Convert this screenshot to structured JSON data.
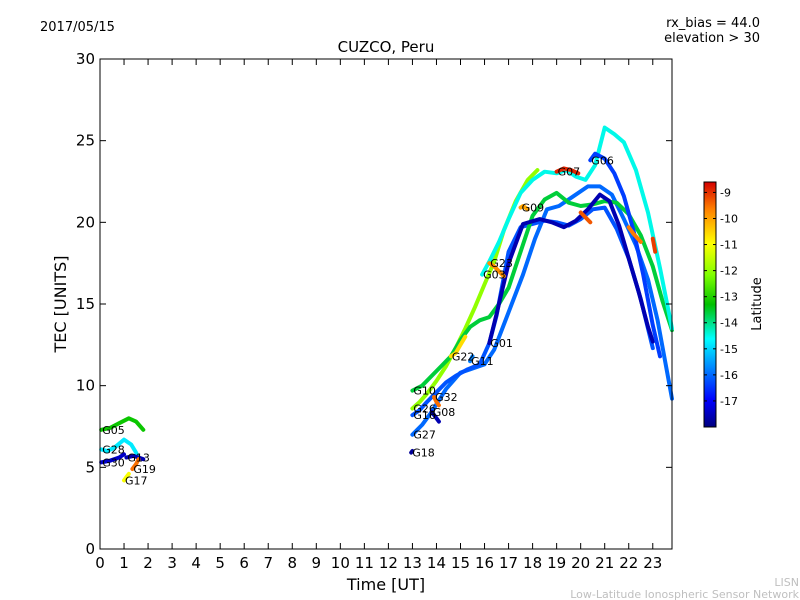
{
  "header": {
    "date": "2017/05/15",
    "title": "CUZCO, Peru",
    "rx_bias": "rx_bias = 44.0",
    "elevation": "elevation > 30"
  },
  "colorbar": {
    "label": "Latitude",
    "ticks": [
      "-9",
      "-10",
      "-11",
      "-12",
      "-13",
      "-14",
      "-15",
      "-16",
      "-17"
    ],
    "range": [
      -18,
      -8.6
    ]
  },
  "credits": {
    "line1": "LISN",
    "line2": "Low-Latitude Ionospheric Sensor Network"
  },
  "chart_data": {
    "type": "scatter",
    "title": "CUZCO, Peru",
    "xlabel": "Time [UT]",
    "ylabel": "TEC [UNITS]",
    "xlim": [
      0,
      23.8
    ],
    "ylim": [
      0,
      30
    ],
    "xticks": [
      "0",
      "1",
      "2",
      "3",
      "4",
      "5",
      "6",
      "7",
      "8",
      "9",
      "10",
      "11",
      "12",
      "13",
      "14",
      "15",
      "16",
      "17",
      "18",
      "19",
      "20",
      "21",
      "22",
      "23"
    ],
    "yticks": [
      "0",
      "5",
      "10",
      "15",
      "20",
      "25",
      "30"
    ],
    "grid": false,
    "color_by": "Latitude",
    "series": [
      {
        "name": "G05",
        "lat": -13.2,
        "x": [
          0.05,
          0.4,
          0.8,
          1.2,
          1.5,
          1.8
        ],
        "y": [
          7.3,
          7.4,
          7.7,
          8.0,
          7.8,
          7.3
        ]
      },
      {
        "name": "G28",
        "lat": -14.8,
        "x": [
          0.05,
          0.3,
          0.6,
          1.0,
          1.3,
          1.5,
          1.6
        ],
        "y": [
          6.1,
          6.0,
          6.2,
          6.7,
          6.4,
          5.9,
          5.5
        ]
      },
      {
        "name": "G30",
        "lat": -17.4,
        "x": [
          0.05,
          0.4,
          0.8,
          1.0
        ],
        "y": [
          5.3,
          5.4,
          5.6,
          5.8
        ]
      },
      {
        "name": "G13",
        "lat": -17.6,
        "x": [
          1.1,
          1.4,
          1.8
        ],
        "y": [
          5.6,
          5.7,
          5.5
        ]
      },
      {
        "name": "G19",
        "lat": -9.5,
        "x": [
          1.35,
          1.5,
          1.6
        ],
        "y": [
          4.9,
          5.2,
          5.5
        ]
      },
      {
        "name": "G17",
        "lat": -11.0,
        "x": [
          1.0,
          1.1,
          1.2
        ],
        "y": [
          4.2,
          4.4,
          4.6
        ]
      },
      {
        "name": "G18",
        "lat": -17.8,
        "x": [
          12.95,
          13.0
        ],
        "y": [
          5.9,
          6.0
        ]
      },
      {
        "name": "G27",
        "lat": -16.0,
        "x": [
          13.0,
          13.4,
          13.8,
          14.4,
          15.0,
          15.4,
          16.0,
          16.4,
          17.0,
          17.6,
          18.1,
          18.6,
          19.1,
          19.7,
          20.3,
          20.8,
          21.3,
          21.8,
          22.3,
          22.8,
          23.2,
          23.8
        ],
        "y": [
          7.0,
          7.6,
          8.4,
          9.8,
          10.8,
          11.0,
          11.3,
          12.2,
          14.5,
          16.8,
          19.0,
          20.8,
          21.0,
          21.6,
          22.2,
          22.2,
          21.7,
          20.2,
          18.6,
          16.5,
          14.0,
          9.2
        ]
      },
      {
        "name": "G16",
        "lat": -16.2,
        "x": [
          13.0,
          13.3,
          13.6,
          14.0,
          14.4,
          14.8,
          15.3,
          15.8,
          16.2,
          16.5,
          17.0,
          17.5,
          18.0,
          18.5,
          19.0,
          19.5,
          20.0,
          20.5,
          21.0,
          21.5,
          22.0,
          22.5,
          23.0
        ],
        "y": [
          8.2,
          8.5,
          9.0,
          9.6,
          10.2,
          10.6,
          11.0,
          11.3,
          12.6,
          14.3,
          18.2,
          19.7,
          19.9,
          20.1,
          20.0,
          19.8,
          20.2,
          20.8,
          20.9,
          19.6,
          17.8,
          15.3,
          12.3
        ]
      },
      {
        "name": "G26",
        "lat": -12.0,
        "x": [
          13.0,
          13.3,
          13.6,
          14.0,
          14.4,
          14.8,
          15.2,
          15.6,
          16.0,
          16.4,
          16.8,
          17.3,
          17.8,
          18.2
        ],
        "y": [
          8.6,
          9.0,
          9.5,
          10.3,
          11.2,
          12.3,
          13.5,
          14.8,
          16.2,
          17.6,
          19.5,
          21.3,
          22.6,
          23.2
        ]
      },
      {
        "name": "G10",
        "lat": -13.6,
        "x": [
          13.0,
          13.4,
          13.8,
          14.2,
          14.6,
          15.0,
          15.4,
          15.8,
          16.2,
          16.6,
          17.0,
          17.5,
          18.0,
          18.5,
          19.0,
          19.5,
          20.0,
          20.5,
          21.0,
          21.5,
          22.0,
          22.5,
          23.0,
          23.4,
          23.8
        ],
        "y": [
          9.7,
          10.0,
          10.6,
          11.2,
          11.8,
          12.8,
          13.6,
          14.0,
          14.2,
          15.0,
          16.0,
          18.2,
          20.4,
          21.4,
          21.8,
          21.2,
          21.0,
          21.1,
          21.3,
          21.2,
          20.5,
          19.2,
          17.3,
          15.2,
          13.4
        ]
      },
      {
        "name": "G01",
        "lat": -17.6,
        "x": [
          16.2,
          16.5,
          17.0,
          17.6,
          18.3,
          18.8,
          19.3,
          19.8,
          20.3,
          20.8,
          21.2,
          21.6,
          22.0,
          22.4,
          22.8,
          23.0
        ],
        "y": [
          12.6,
          14.4,
          17.5,
          19.9,
          20.2,
          20.0,
          19.7,
          20.1,
          20.8,
          21.7,
          21.3,
          19.8,
          17.8,
          15.8,
          13.6,
          12.7
        ]
      },
      {
        "name": "G22",
        "lat": -10.6,
        "x": [
          14.6,
          14.8,
          15.0,
          15.2
        ],
        "y": [
          11.8,
          12.0,
          12.5,
          13.0
        ]
      },
      {
        "name": "G11",
        "lat": -15.8,
        "x": [
          15.4,
          15.5
        ],
        "y": [
          11.5,
          11.8
        ]
      },
      {
        "name": "G08",
        "lat": -17.6,
        "x": [
          13.8,
          13.9,
          14.1
        ],
        "y": [
          8.4,
          8.2,
          7.8
        ]
      },
      {
        "name": "G32",
        "lat": -9.5,
        "x": [
          13.9,
          14.0,
          14.1
        ],
        "y": [
          9.3,
          9.0,
          8.8
        ]
      },
      {
        "name": "G03",
        "lat": -14.5,
        "x": [
          15.9,
          16.2,
          16.6,
          17.0,
          17.5,
          18.0,
          18.5,
          19.0,
          19.4,
          19.8,
          20.2,
          20.6,
          21.0,
          21.4,
          21.8,
          22.3,
          22.8,
          23.3,
          23.8
        ],
        "y": [
          16.8,
          17.6,
          18.8,
          20.2,
          21.8,
          22.6,
          23.1,
          23.0,
          23.2,
          22.8,
          22.6,
          23.5,
          25.8,
          25.4,
          24.9,
          23.2,
          20.6,
          17.2,
          13.5
        ]
      },
      {
        "name": "G23",
        "lat": -9.8,
        "x": [
          16.2,
          16.4,
          16.6,
          16.8
        ],
        "y": [
          17.5,
          17.3,
          17.0,
          16.7
        ]
      },
      {
        "name": "G09",
        "lat": -10.0,
        "x": [
          17.5,
          17.6,
          17.8
        ],
        "y": [
          20.9,
          21.0,
          20.8
        ]
      },
      {
        "name": "G07",
        "lat": -8.9,
        "x": [
          19.0,
          19.3,
          19.6,
          19.9
        ],
        "y": [
          23.1,
          23.3,
          23.2,
          23.0
        ]
      },
      {
        "name": "G06",
        "lat": -16.4,
        "x": [
          20.4,
          20.6,
          21.0,
          21.4,
          21.8,
          22.2,
          22.6,
          23.0,
          23.3
        ],
        "y": [
          23.8,
          24.2,
          23.9,
          23.0,
          21.6,
          19.5,
          16.8,
          13.7,
          11.8
        ]
      },
      {
        "name": "",
        "lat": -9.3,
        "x": [
          20.0,
          20.2,
          20.4
        ],
        "y": [
          20.6,
          20.3,
          20.0
        ]
      },
      {
        "name": "",
        "lat": -9.6,
        "x": [
          22.0,
          22.2,
          22.5
        ],
        "y": [
          19.7,
          19.3,
          18.8
        ]
      },
      {
        "name": "",
        "lat": -9.1,
        "x": [
          23.0,
          23.1
        ],
        "y": [
          19.0,
          18.2
        ]
      }
    ]
  }
}
